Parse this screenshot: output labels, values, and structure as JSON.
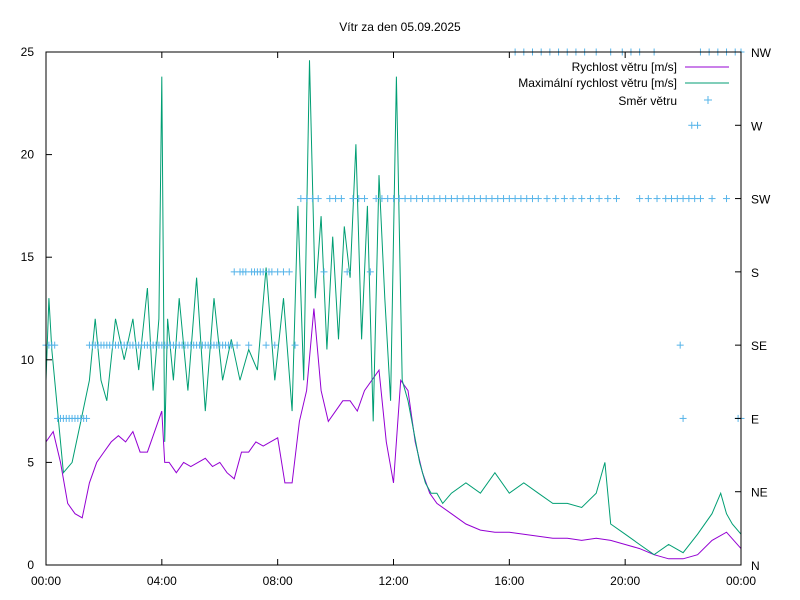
{
  "chart_data": {
    "type": "line",
    "title": "Vítr za den 05.09.2025",
    "x_tick_labels": [
      "00:00",
      "04:00",
      "08:00",
      "12:00",
      "16:00",
      "20:00",
      "00:00"
    ],
    "x_range_hours": [
      0,
      24
    ],
    "y_left_range": [
      0,
      25
    ],
    "y_left_ticks": [
      "0",
      "5",
      "10",
      "15",
      "20",
      "25"
    ],
    "y_right_range": [
      0,
      7
    ],
    "y_right_ticks": [
      "N",
      "NE",
      "E",
      "SE",
      "S",
      "SW",
      "W",
      "NW"
    ],
    "legend_position": "top-right",
    "grid": false,
    "series": [
      {
        "name": "Rychlost větru [m/s]",
        "color": "#9400d3",
        "axis": "left",
        "style": "line",
        "x": [
          0,
          0.25,
          0.5,
          0.75,
          1,
          1.25,
          1.5,
          1.75,
          2,
          2.25,
          2.5,
          2.75,
          3,
          3.25,
          3.5,
          3.75,
          4,
          4.1,
          4.25,
          4.5,
          4.75,
          5,
          5.25,
          5.5,
          5.75,
          6,
          6.25,
          6.5,
          6.75,
          7,
          7.25,
          7.5,
          7.75,
          8,
          8.25,
          8.5,
          8.75,
          9,
          9.25,
          9.5,
          9.75,
          10,
          10.25,
          10.5,
          10.75,
          11,
          11.25,
          11.5,
          11.75,
          12,
          12.25,
          12.5,
          12.75,
          13,
          13.25,
          13.5,
          14,
          14.5,
          15,
          15.5,
          16,
          16.5,
          17,
          17.5,
          18,
          18.5,
          19,
          19.5,
          20,
          20.5,
          21,
          21.5,
          22,
          22.5,
          23,
          23.5,
          24
        ],
        "y": [
          6,
          6.5,
          5,
          3,
          2.5,
          2.3,
          4,
          5,
          5.5,
          6,
          6.3,
          6,
          6.5,
          5.5,
          5.5,
          6.5,
          7.5,
          5,
          5,
          4.5,
          5,
          4.8,
          5,
          5.2,
          4.8,
          5,
          4.5,
          4.2,
          5.5,
          5.5,
          6,
          5.8,
          6,
          6.2,
          4,
          4,
          7,
          8.5,
          12.5,
          8.5,
          7,
          7.5,
          8,
          8,
          7.5,
          8.5,
          9,
          9.5,
          6,
          4,
          9,
          8.5,
          6,
          4.5,
          3.5,
          3,
          2.5,
          2,
          1.7,
          1.6,
          1.6,
          1.5,
          1.4,
          1.3,
          1.3,
          1.2,
          1.3,
          1.2,
          1.0,
          0.8,
          0.5,
          0.3,
          0.3,
          0.5,
          1.2,
          1.6,
          0.8
        ]
      },
      {
        "name": "Maximální rychlost větru [m/s]",
        "color": "#009e73",
        "axis": "left",
        "style": "line",
        "x": [
          0,
          0.1,
          0.2,
          0.4,
          0.6,
          0.9,
          1.2,
          1.5,
          1.7,
          1.9,
          2.1,
          2.4,
          2.7,
          3.0,
          3.2,
          3.5,
          3.7,
          3.9,
          4.0,
          4.1,
          4.2,
          4.4,
          4.6,
          4.9,
          5.2,
          5.5,
          5.8,
          6.1,
          6.4,
          6.7,
          7.0,
          7.3,
          7.6,
          7.9,
          8.2,
          8.5,
          8.7,
          8.9,
          9.1,
          9.3,
          9.5,
          9.7,
          9.9,
          10.1,
          10.3,
          10.5,
          10.7,
          10.9,
          11.1,
          11.3,
          11.5,
          11.7,
          11.9,
          12.1,
          12.3,
          12.5,
          12.7,
          12.9,
          13.1,
          13.3,
          13.5,
          13.7,
          14.0,
          14.5,
          15.0,
          15.5,
          16.0,
          16.5,
          17.0,
          17.5,
          18.0,
          18.5,
          19.0,
          19.3,
          19.5,
          20.0,
          20.5,
          21.0,
          21.5,
          22.0,
          22.5,
          23.0,
          23.3,
          23.5,
          23.7,
          24.0
        ],
        "y": [
          9,
          13,
          10.5,
          7.5,
          4.5,
          5,
          7,
          9,
          12,
          9,
          8,
          12,
          10,
          12,
          9.5,
          13.5,
          8.5,
          12,
          23.8,
          6,
          12,
          9,
          13,
          8.5,
          14,
          7.5,
          13,
          9,
          11,
          9,
          10.5,
          9.5,
          14.5,
          9,
          13,
          7.5,
          17.5,
          9,
          24.6,
          13,
          17,
          10.5,
          16,
          11,
          16.5,
          14,
          20.5,
          11,
          17.5,
          7,
          19,
          13,
          8,
          23.8,
          9,
          8,
          6.5,
          5,
          4,
          3.5,
          3.5,
          3,
          3.5,
          4,
          3.5,
          4.5,
          3.5,
          4,
          3.5,
          3,
          3,
          2.8,
          3.5,
          5,
          2,
          1.5,
          1,
          0.5,
          1,
          0.6,
          1.5,
          2.5,
          3.5,
          2.5,
          2,
          1.5
        ]
      },
      {
        "name": "Směr větru",
        "color": "#56b4e9",
        "axis": "right",
        "style": "points",
        "x": [
          0,
          0.1,
          0.2,
          0.3,
          0.4,
          0.5,
          0.6,
          0.7,
          0.8,
          0.9,
          1.0,
          1.1,
          1.2,
          1.3,
          1.4,
          1.5,
          1.6,
          1.7,
          1.8,
          1.9,
          2.0,
          2.1,
          2.2,
          2.3,
          2.4,
          2.5,
          2.6,
          2.7,
          2.8,
          2.9,
          3.0,
          3.1,
          3.2,
          3.3,
          3.4,
          3.5,
          3.6,
          3.7,
          3.8,
          3.9,
          4.0,
          4.1,
          4.2,
          4.3,
          4.4,
          4.5,
          4.6,
          4.7,
          4.8,
          4.9,
          5.0,
          5.1,
          5.2,
          5.3,
          5.4,
          5.5,
          5.6,
          5.7,
          5.8,
          5.9,
          6.0,
          6.1,
          6.2,
          6.3,
          6.4,
          6.5,
          6.6,
          6.7,
          6.8,
          6.9,
          7.0,
          7.1,
          7.2,
          7.3,
          7.4,
          7.5,
          7.6,
          7.7,
          7.8,
          7.9,
          8.0,
          8.2,
          8.4,
          8.6,
          8.8,
          9.0,
          9.2,
          9.4,
          9.6,
          9.8,
          10.0,
          10.2,
          10.4,
          10.6,
          10.8,
          11.0,
          11.2,
          11.4,
          11.6,
          11.8,
          12.0,
          12.2,
          12.4,
          12.6,
          12.8,
          13.0,
          13.2,
          13.4,
          13.6,
          13.8,
          14.0,
          14.2,
          14.4,
          14.6,
          14.8,
          15.0,
          15.2,
          15.4,
          15.6,
          15.8,
          16.0,
          16.2,
          16.4,
          16.6,
          16.8,
          17.0,
          17.3,
          17.6,
          17.9,
          18.2,
          18.5,
          18.8,
          19.1,
          19.4,
          19.7,
          20.5,
          20.8,
          21.1,
          21.4,
          21.6,
          21.8,
          22.0,
          22.2,
          22.4,
          22.6,
          23.0,
          23.5,
          16.2,
          16.5,
          16.8,
          17.1,
          17.4,
          17.7,
          18.0,
          18.3,
          18.6,
          19.0,
          19.5,
          19.9,
          20.2,
          20.5,
          21.0,
          22.6,
          22.9,
          23.2,
          23.5,
          23.8,
          24.0,
          22.3,
          22.5,
          21.9,
          22.0,
          23.9,
          24.0
        ],
        "y": [
          3,
          3,
          3,
          3,
          2,
          2,
          2,
          2,
          2,
          2,
          2,
          2,
          2,
          2,
          2,
          3,
          3,
          3,
          3,
          3,
          3,
          3,
          3,
          3,
          3,
          3,
          3,
          3,
          3,
          3,
          3,
          3,
          3,
          3,
          3,
          3,
          3,
          3,
          3,
          3,
          3,
          3,
          3,
          3,
          3,
          3,
          3,
          3,
          3,
          3,
          3,
          3,
          3,
          3,
          3,
          3,
          3,
          3,
          3,
          3,
          3,
          3,
          3,
          3,
          3,
          4,
          3,
          4,
          4,
          4,
          3,
          4,
          4,
          4,
          4,
          4,
          3,
          4,
          4,
          3,
          4,
          4,
          4,
          3,
          5,
          5,
          5,
          5,
          4,
          5,
          5,
          5,
          4,
          5,
          5,
          5,
          4,
          5,
          5,
          5,
          5,
          5,
          5,
          5,
          5,
          5,
          5,
          5,
          5,
          5,
          5,
          5,
          5,
          5,
          5,
          5,
          5,
          5,
          5,
          5,
          5,
          5,
          5,
          5,
          5,
          5,
          5,
          5,
          5,
          5,
          5,
          5,
          5,
          5,
          5,
          5,
          5,
          5,
          5,
          5,
          5,
          5,
          5,
          5,
          5,
          5,
          5,
          7,
          7,
          7,
          7,
          7,
          7,
          7,
          7,
          7,
          7,
          7,
          7,
          7,
          7,
          7,
          7,
          7,
          7,
          7,
          7,
          7,
          6,
          6,
          3,
          2,
          2,
          2
        ]
      }
    ]
  }
}
